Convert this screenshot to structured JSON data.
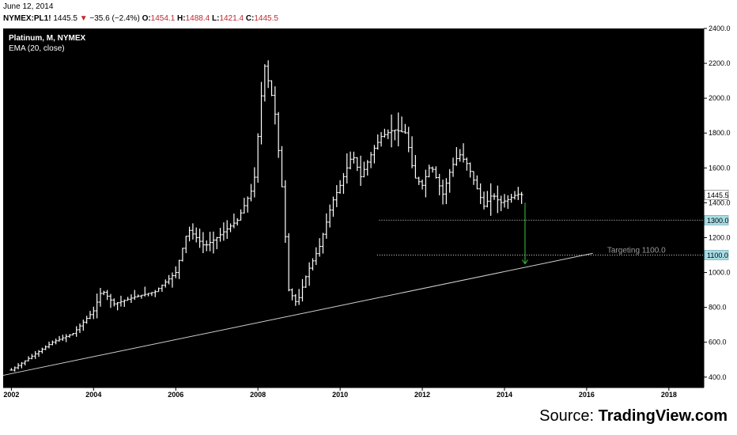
{
  "header": {
    "date": "June 12, 2014",
    "symbol": "NYMEX:PL1!",
    "last": "1445.5",
    "arrow": "▼",
    "change": "−35.6 (−2.4%)",
    "o_label": "O:",
    "o_value": "1454.1",
    "h_label": "H:",
    "h_value": "1488.4",
    "l_label": "L:",
    "l_value": "1421.4",
    "c_label": "C:",
    "c_value": "1445.5"
  },
  "legend": {
    "title": "Platinum, M, NYMEX",
    "indicator": "EMA (20, close)"
  },
  "source": {
    "prefix": "Source: ",
    "brand": "TradingView.com"
  },
  "colors": {
    "background": "#000000",
    "bars": "#ffffff",
    "target_arrow": "#3cc63c",
    "level_badge": "#a8dde6"
  },
  "chart_data": {
    "type": "ohlc",
    "title": "Platinum, M, NYMEX",
    "indicator": "EMA (20, close)",
    "x_ticks": [
      "2002",
      "2004",
      "2006",
      "2008",
      "2010",
      "2012",
      "2014",
      "2016",
      "2018"
    ],
    "x_range": [
      2001.8,
      2018.85
    ],
    "y_ticks": [
      "400.0",
      "600.0",
      "800.0",
      "1000.0",
      "1200.0",
      "1400.0",
      "1600.0",
      "1800.0",
      "2000.0",
      "2200.0",
      "2400.0"
    ],
    "y_range": [
      340,
      2400
    ],
    "series": [
      {
        "points": [
          [
            2002.0,
            440
          ],
          [
            2002.5,
            520
          ],
          [
            2003.0,
            600
          ],
          [
            2003.5,
            650
          ],
          [
            2004.0,
            780
          ],
          [
            2004.2,
            900
          ],
          [
            2004.5,
            820
          ],
          [
            2005.0,
            860
          ],
          [
            2005.5,
            890
          ],
          [
            2006.0,
            1000
          ],
          [
            2006.3,
            1250
          ],
          [
            2006.7,
            1150
          ],
          [
            2007.0,
            1200
          ],
          [
            2007.5,
            1300
          ],
          [
            2007.9,
            1500
          ],
          [
            2008.15,
            2200
          ],
          [
            2008.4,
            1950
          ],
          [
            2008.6,
            1450
          ],
          [
            2008.75,
            900
          ],
          [
            2008.95,
            820
          ],
          [
            2009.2,
            1000
          ],
          [
            2009.5,
            1150
          ],
          [
            2009.8,
            1400
          ],
          [
            2010.0,
            1500
          ],
          [
            2010.3,
            1680
          ],
          [
            2010.5,
            1550
          ],
          [
            2010.8,
            1700
          ],
          [
            2011.0,
            1780
          ],
          [
            2011.3,
            1820
          ],
          [
            2011.6,
            1800
          ],
          [
            2011.8,
            1550
          ],
          [
            2012.0,
            1500
          ],
          [
            2012.2,
            1620
          ],
          [
            2012.5,
            1450
          ],
          [
            2012.7,
            1600
          ],
          [
            2012.9,
            1680
          ],
          [
            2013.1,
            1620
          ],
          [
            2013.3,
            1500
          ],
          [
            2013.5,
            1380
          ],
          [
            2013.7,
            1450
          ],
          [
            2013.9,
            1400
          ],
          [
            2014.1,
            1420
          ],
          [
            2014.3,
            1450
          ],
          [
            2014.45,
            1445.5
          ]
        ]
      }
    ],
    "last_price": 1445.5,
    "levels": [
      1300.0,
      1100.0
    ],
    "trendline": {
      "x": [
        2001.8,
        2016.15
      ],
      "y": [
        410,
        1110
      ]
    },
    "target_arrow": {
      "x": 2014.5,
      "from": 1400,
      "to": 1050
    },
    "annotations": [
      "Targeting 1100.0"
    ],
    "badges": [
      "1445.5",
      "1300.0",
      "1100.0"
    ]
  }
}
